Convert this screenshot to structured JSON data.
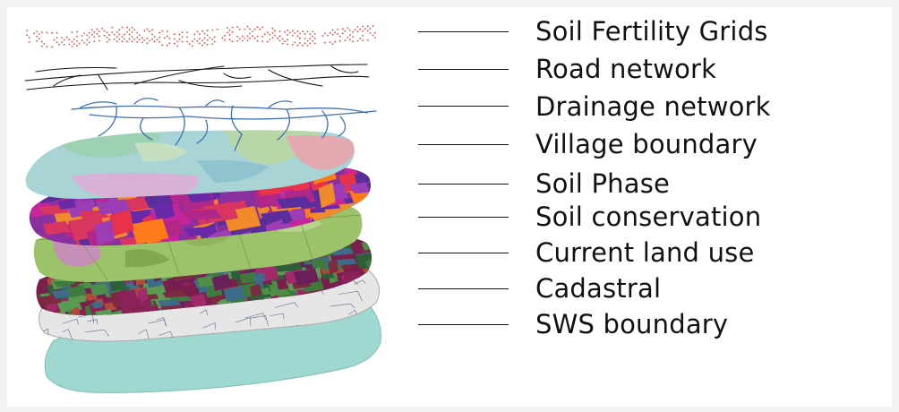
{
  "layers": [
    {
      "id": "soil-fertility-grids",
      "label": "Soil Fertility Grids"
    },
    {
      "id": "road-network",
      "label": "Road network"
    },
    {
      "id": "drainage-network",
      "label": "Drainage network"
    },
    {
      "id": "village-boundary",
      "label": "Village boundary"
    },
    {
      "id": "soil-phase",
      "label": "Soil Phase"
    },
    {
      "id": "soil-conservation",
      "label": "Soil conservation"
    },
    {
      "id": "current-land-use",
      "label": "Current land use"
    },
    {
      "id": "cadastral",
      "label": "Cadastral"
    },
    {
      "id": "sws-boundary",
      "label": "SWS boundary"
    }
  ],
  "colors": {
    "grid_points": "#e8463c",
    "roads": "#111111",
    "drainage": "#3f6fb5",
    "village_base": "#a8d4d6",
    "soil_phase_base": "#8a2fa0",
    "soil_conservation_base": "#9cc26a",
    "land_use_base": "#7a1e4e",
    "cadastral_base": "#e6e6e6",
    "sws_base": "#9fd8d1"
  }
}
